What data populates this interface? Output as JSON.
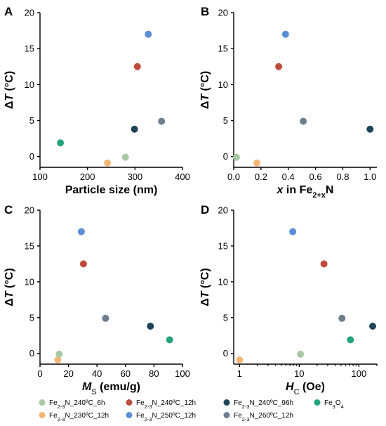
{
  "figure": {
    "series": [
      {
        "name": "Fe2-3N_240ºC_6h",
        "color": "#a9c9a4"
      },
      {
        "name": "Fe2-3N_240ºC_12h",
        "color": "#bf4b3a"
      },
      {
        "name": "Fe2-3N_240ºC_96h",
        "color": "#1e4456"
      },
      {
        "name": "Fe3O4",
        "color": "#23a37c"
      },
      {
        "name": "Fe2-3N_230ºC_12h",
        "color": "#f2b776"
      },
      {
        "name": "Fe2-3N_250ºC_12h",
        "color": "#5b8ed6"
      },
      {
        "name": "Fe2-3N_260ºC_12h",
        "color": "#6d7f8f"
      }
    ]
  },
  "chart_data": [
    {
      "panel": "A",
      "type": "scatter",
      "xlabel": "Particle size (nm)",
      "ylabel": "ΔT (°C)",
      "xlim": [
        100,
        400
      ],
      "ylim": [
        -1.5,
        20
      ],
      "xticks": [
        100,
        200,
        300,
        400
      ],
      "yticks": [
        0,
        5,
        10,
        15,
        20
      ],
      "points": [
        {
          "series": "Fe3O4",
          "x": 143,
          "y": 1.9
        },
        {
          "series": "Fe2-3N_230ºC_12h",
          "x": 242,
          "y": -0.9
        },
        {
          "series": "Fe2-3N_240ºC_6h",
          "x": 280,
          "y": -0.1
        },
        {
          "series": "Fe2-3N_240ºC_96h",
          "x": 299,
          "y": 3.8
        },
        {
          "series": "Fe2-3N_240ºC_12h",
          "x": 305,
          "y": 12.5
        },
        {
          "series": "Fe2-3N_250ºC_12h",
          "x": 328,
          "y": 17.0
        },
        {
          "series": "Fe2-3N_260ºC_12h",
          "x": 356,
          "y": 4.9
        }
      ]
    },
    {
      "panel": "B",
      "type": "scatter",
      "xlabel": "x in Fe2+xN",
      "ylabel": "ΔT (°C)",
      "xlim": [
        0.0,
        1.05
      ],
      "ylim": [
        -1.5,
        20
      ],
      "xticks": [
        0.0,
        0.2,
        0.4,
        0.6,
        0.8,
        1.0
      ],
      "yticks": [
        0,
        5,
        10,
        15,
        20
      ],
      "points": [
        {
          "series": "Fe2-3N_240ºC_6h",
          "x": 0.02,
          "y": -0.1
        },
        {
          "series": "Fe2-3N_230ºC_12h",
          "x": 0.17,
          "y": -0.9
        },
        {
          "series": "Fe2-3N_240ºC_12h",
          "x": 0.33,
          "y": 12.5
        },
        {
          "series": "Fe2-3N_250ºC_12h",
          "x": 0.38,
          "y": 17.0
        },
        {
          "series": "Fe2-3N_260ºC_12h",
          "x": 0.51,
          "y": 4.9
        },
        {
          "series": "Fe2-3N_240ºC_96h",
          "x": 1.0,
          "y": 3.8
        }
      ]
    },
    {
      "panel": "C",
      "type": "scatter",
      "xlabel": "MS (emu/g)",
      "ylabel": "ΔT (°C)",
      "xlim": [
        0,
        100
      ],
      "ylim": [
        -1.5,
        20
      ],
      "xticks": [
        0,
        20,
        40,
        60,
        80,
        100
      ],
      "yticks": [
        0,
        5,
        10,
        15,
        20
      ],
      "points": [
        {
          "series": "Fe2-3N_230ºC_12h",
          "x": 12.5,
          "y": -0.9
        },
        {
          "series": "Fe2-3N_240ºC_6h",
          "x": 13.5,
          "y": -0.1
        },
        {
          "series": "Fe2-3N_250ºC_12h",
          "x": 29,
          "y": 17.0
        },
        {
          "series": "Fe2-3N_240ºC_12h",
          "x": 30.5,
          "y": 12.5
        },
        {
          "series": "Fe2-3N_260ºC_12h",
          "x": 46,
          "y": 4.9
        },
        {
          "series": "Fe2-3N_240ºC_96h",
          "x": 77.5,
          "y": 3.8
        },
        {
          "series": "Fe3O4",
          "x": 91,
          "y": 1.9
        }
      ]
    },
    {
      "panel": "D",
      "type": "scatter",
      "xlabel": "HC (Oe)",
      "ylabel": "ΔT (°C)",
      "xscale": "log",
      "xlim": [
        0.8,
        200
      ],
      "ylim": [
        -1.5,
        20
      ],
      "xticks": [
        1,
        10,
        100
      ],
      "yticks": [
        0,
        5,
        10,
        15,
        20
      ],
      "points": [
        {
          "series": "Fe2-3N_230ºC_12h",
          "x": 1.0,
          "y": -0.9
        },
        {
          "series": "Fe2-3N_250ºC_12h",
          "x": 7.8,
          "y": 17.0
        },
        {
          "series": "Fe2-3N_240ºC_6h",
          "x": 10.5,
          "y": -0.1
        },
        {
          "series": "Fe2-3N_240ºC_12h",
          "x": 26,
          "y": 12.5
        },
        {
          "series": "Fe2-3N_260ºC_12h",
          "x": 52,
          "y": 4.9
        },
        {
          "series": "Fe3O4",
          "x": 72,
          "y": 1.9
        },
        {
          "series": "Fe2-3N_240ºC_96h",
          "x": 170,
          "y": 3.8
        }
      ]
    }
  ]
}
